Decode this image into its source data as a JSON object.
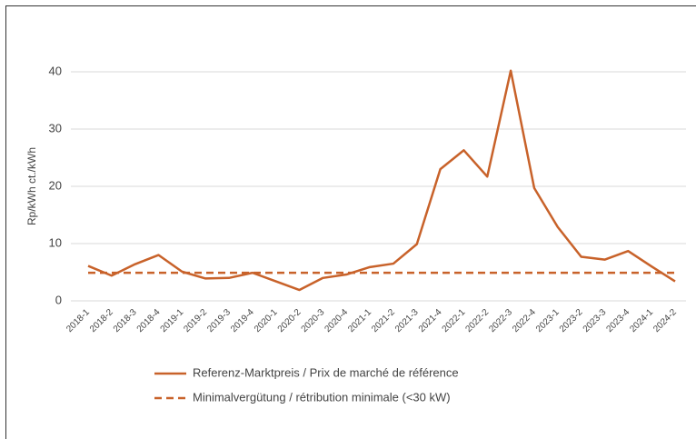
{
  "chart_data": {
    "type": "line",
    "y_label": "Rp/kWh ct./kWh",
    "categories": [
      "2018-1",
      "2018-2",
      "2018-3",
      "2018-4",
      "2019-1",
      "2019-2",
      "2019-3",
      "2019-4",
      "2020-1",
      "2020-2",
      "2020-3",
      "2020-4",
      "2021-1",
      "2021-2",
      "2021-3",
      "2021-4",
      "2022-1",
      "2022-2",
      "2022-3",
      "2022-4",
      "2023-1",
      "2023-2",
      "2023-3",
      "2023-4",
      "2024-1",
      "2024-2"
    ],
    "series": [
      {
        "name": "Referenz-Marktpreis / Prix de marché de référence",
        "color": "#c8622a",
        "dashed": false,
        "values": [
          6.1,
          4.4,
          6.4,
          8.0,
          5.1,
          3.9,
          4.0,
          4.9,
          3.4,
          1.9,
          4.0,
          4.6,
          5.9,
          6.5,
          9.9,
          23.0,
          26.3,
          21.7,
          40.2,
          19.7,
          12.9,
          7.7,
          7.2,
          8.7,
          6.0,
          3.4
        ]
      },
      {
        "name": "Minimalvergütung / rétribution minimale (<30 kW)",
        "color": "#c8622a",
        "dashed": true,
        "values": [
          4.9,
          4.9,
          4.9,
          4.9,
          4.9,
          4.9,
          4.9,
          4.9,
          4.9,
          4.9,
          4.9,
          4.9,
          4.9,
          4.9,
          4.9,
          4.9,
          4.9,
          4.9,
          4.9,
          4.9,
          4.9,
          4.9,
          4.9,
          4.9,
          4.9,
          4.9
        ]
      }
    ],
    "ylim": [
      0,
      40
    ],
    "yticks": [
      0,
      10,
      20,
      30,
      40
    ],
    "grid": true
  }
}
